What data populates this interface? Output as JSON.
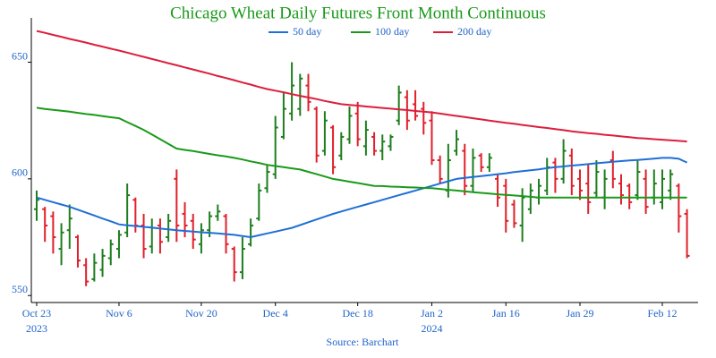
{
  "chart_data": {
    "type": "ohlc",
    "title": "Chicago Wheat Daily Futures Front Month Continuous",
    "source": "Source: Barchart",
    "x": [
      "2023-10-23",
      "2023-10-24",
      "2023-10-25",
      "2023-10-26",
      "2023-10-27",
      "2023-10-30",
      "2023-10-31",
      "2023-11-01",
      "2023-11-02",
      "2023-11-03",
      "2023-11-06",
      "2023-11-07",
      "2023-11-08",
      "2023-11-09",
      "2023-11-10",
      "2023-11-13",
      "2023-11-14",
      "2023-11-15",
      "2023-11-16",
      "2023-11-17",
      "2023-11-20",
      "2023-11-21",
      "2023-11-22",
      "2023-11-24",
      "2023-11-27",
      "2023-11-28",
      "2023-11-29",
      "2023-11-30",
      "2023-12-01",
      "2023-12-04",
      "2023-12-05",
      "2023-12-06",
      "2023-12-07",
      "2023-12-08",
      "2023-12-11",
      "2023-12-12",
      "2023-12-13",
      "2023-12-14",
      "2023-12-15",
      "2023-12-18",
      "2023-12-19",
      "2023-12-20",
      "2023-12-21",
      "2023-12-22",
      "2023-12-26",
      "2023-12-27",
      "2023-12-28",
      "2023-12-29",
      "2024-01-02",
      "2024-01-03",
      "2024-01-04",
      "2024-01-05",
      "2024-01-08",
      "2024-01-09",
      "2024-01-10",
      "2024-01-11",
      "2024-01-12",
      "2024-01-16",
      "2024-01-17",
      "2024-01-18",
      "2024-01-19",
      "2024-01-22",
      "2024-01-23",
      "2024-01-24",
      "2024-01-25",
      "2024-01-26",
      "2024-01-29",
      "2024-01-30",
      "2024-01-31",
      "2024-02-01",
      "2024-02-02",
      "2024-02-05",
      "2024-02-06",
      "2024-02-07",
      "2024-02-08",
      "2024-02-09",
      "2024-02-12",
      "2024-02-13",
      "2024-02-14",
      "2024-02-15"
    ],
    "open": [
      587,
      587,
      584,
      570,
      578,
      575,
      563,
      557,
      561,
      566,
      570,
      577,
      591,
      580,
      571,
      580,
      575,
      600,
      585,
      582,
      572,
      578,
      584,
      584,
      570,
      560,
      572,
      583,
      596,
      602,
      618,
      628,
      630,
      640,
      630,
      612,
      622,
      610,
      617,
      628,
      614,
      618,
      612,
      614,
      625,
      635,
      632,
      630,
      625,
      608,
      595,
      612,
      612,
      597,
      610,
      605,
      600,
      597,
      589,
      580,
      587,
      592,
      595,
      607,
      600,
      610,
      600,
      598,
      594,
      592,
      608,
      598,
      597,
      593,
      600,
      592,
      590,
      595,
      597,
      585
    ],
    "high": [
      595,
      588,
      586,
      581,
      589,
      576,
      566,
      568,
      570,
      574,
      578,
      598,
      592,
      585,
      583,
      583,
      585,
      604,
      590,
      585,
      581,
      586,
      589,
      585,
      571,
      575,
      583,
      598,
      606,
      627,
      637,
      650,
      645,
      645,
      631,
      629,
      623,
      620,
      631,
      633,
      625,
      620,
      619,
      619,
      640,
      638,
      638,
      633,
      629,
      610,
      615,
      621,
      615,
      613,
      611,
      611,
      602,
      600,
      591,
      596,
      598,
      600,
      609,
      609,
      617,
      613,
      604,
      606,
      608,
      604,
      612,
      602,
      598,
      608,
      604,
      604,
      604,
      604,
      598,
      587
    ],
    "low": [
      582,
      573,
      568,
      563,
      570,
      562,
      554,
      556,
      558,
      563,
      566,
      575,
      577,
      566,
      568,
      568,
      573,
      573,
      575,
      570,
      568,
      575,
      582,
      568,
      556,
      557,
      571,
      582,
      594,
      600,
      617,
      625,
      627,
      629,
      607,
      610,
      602,
      608,
      615,
      614,
      610,
      610,
      608,
      612,
      623,
      621,
      625,
      619,
      606,
      598,
      592,
      610,
      593,
      594,
      603,
      603,
      588,
      577,
      579,
      573,
      585,
      589,
      593,
      594,
      598,
      593,
      591,
      585,
      592,
      587,
      596,
      589,
      587,
      591,
      585,
      589,
      587,
      591,
      577,
      566
    ],
    "close": [
      591,
      580,
      575,
      577,
      583,
      565,
      556,
      564,
      567,
      572,
      576,
      593,
      580,
      570,
      579,
      573,
      582,
      580,
      580,
      574,
      578,
      584,
      586,
      572,
      560,
      570,
      580,
      595,
      603,
      622,
      630,
      640,
      643,
      633,
      610,
      625,
      605,
      618,
      627,
      617,
      621,
      612,
      616,
      618,
      637,
      625,
      627,
      624,
      608,
      600,
      608,
      617,
      597,
      609,
      605,
      609,
      592,
      582,
      581,
      592,
      595,
      597,
      605,
      600,
      612,
      597,
      595,
      590,
      603,
      600,
      600,
      593,
      590,
      603,
      588,
      598,
      600,
      602,
      584,
      567
    ],
    "increasing_color": "#1e7e1e",
    "decreasing_color": "#e0202a",
    "series": [
      {
        "name": "50 day",
        "color": "#1f6fd6",
        "values": [
          592,
          591,
          590,
          589,
          588,
          586.8,
          585.5,
          584.3,
          583,
          581.8,
          580.5,
          580.1,
          579.8,
          579.4,
          579.1,
          578.7,
          578.4,
          578,
          577.7,
          577.4,
          577.1,
          576.9,
          576.6,
          576.3,
          576,
          575.5,
          575,
          575.8,
          576.6,
          577.4,
          578.2,
          579,
          580.2,
          581.4,
          582.6,
          583.8,
          585,
          586,
          587,
          588,
          589,
          590,
          591,
          592,
          593,
          594,
          595,
          596,
          597,
          598,
          599,
          600,
          600.4,
          600.8,
          601.2,
          601.6,
          602,
          602.4,
          602.9,
          603.3,
          603.7,
          604.1,
          604.6,
          605,
          605.3,
          605.7,
          606,
          606.3,
          606.7,
          607,
          607.3,
          607.6,
          607.9,
          608.1,
          608.4,
          608.7,
          609,
          609,
          608.6,
          607
        ]
      },
      {
        "name": "100 day",
        "color": "#1a9a1a",
        "values": [
          630.5,
          630,
          629.6,
          629.2,
          628.8,
          628.3,
          627.8,
          627.4,
          626.9,
          626.4,
          626,
          624.3,
          622.7,
          621,
          619,
          617,
          615,
          613,
          612.4,
          611.9,
          611.3,
          610.7,
          610.1,
          609.6,
          609,
          608.3,
          607.5,
          606.8,
          606,
          605.5,
          605,
          604.5,
          604,
          603,
          602,
          601,
          600,
          599.4,
          598.8,
          598.2,
          597.6,
          597,
          596.9,
          596.7,
          596.6,
          596.4,
          596.3,
          596.1,
          596,
          595.7,
          595.3,
          595,
          594.7,
          594.3,
          594,
          593.7,
          593.4,
          593.1,
          592.9,
          592.6,
          592.3,
          592,
          592,
          592,
          592,
          592,
          592,
          592,
          592,
          592,
          592,
          592,
          592,
          592,
          592,
          592,
          592,
          592,
          592,
          592
        ]
      },
      {
        "name": "200 day",
        "color": "#dc1e3c",
        "values": [
          663.4,
          662.6,
          661.7,
          660.9,
          660,
          659.2,
          658.4,
          657.5,
          656.7,
          655.8,
          655,
          654.1,
          653.2,
          652.3,
          651.4,
          650.5,
          649.6,
          648.7,
          647.8,
          646.9,
          646,
          645.1,
          644.1,
          643.2,
          642.3,
          641.3,
          640.4,
          639.4,
          638.5,
          637.8,
          637.1,
          636.3,
          635.6,
          634.9,
          634.2,
          633.4,
          632.7,
          632,
          631.7,
          631.4,
          631,
          630.7,
          630.4,
          630.1,
          629.8,
          629.5,
          629.1,
          628.8,
          628.5,
          628,
          627.5,
          627,
          626.5,
          626,
          625.5,
          625,
          624.5,
          624,
          623.6,
          623.1,
          622.7,
          622.2,
          621.8,
          621.3,
          620.9,
          620.4,
          620,
          619.6,
          619.3,
          618.9,
          618.6,
          618.2,
          617.9,
          617.5,
          617.3,
          617,
          616.8,
          616.5,
          616.3,
          616
        ]
      }
    ],
    "ylim": [
      547,
      669
    ],
    "yticks": [
      550,
      600,
      650
    ],
    "xticks": [
      {
        "value": "2023-10-23",
        "label": "Oct 23\n2023"
      },
      {
        "value": "2023-11-06",
        "label": "Nov 6"
      },
      {
        "value": "2023-11-20",
        "label": "Nov 20"
      },
      {
        "value": "2023-12-04",
        "label": "Dec 4"
      },
      {
        "value": "2023-12-18",
        "label": "Dec 18"
      },
      {
        "value": "2024-01-02",
        "label": "Jan 2\n2024"
      },
      {
        "value": "2024-01-16",
        "label": "Jan 16"
      },
      {
        "value": "2024-01-29",
        "label": "Jan 29"
      },
      {
        "value": "2024-02-12",
        "label": "Feb 12"
      }
    ],
    "legend": "top",
    "grid": false
  }
}
